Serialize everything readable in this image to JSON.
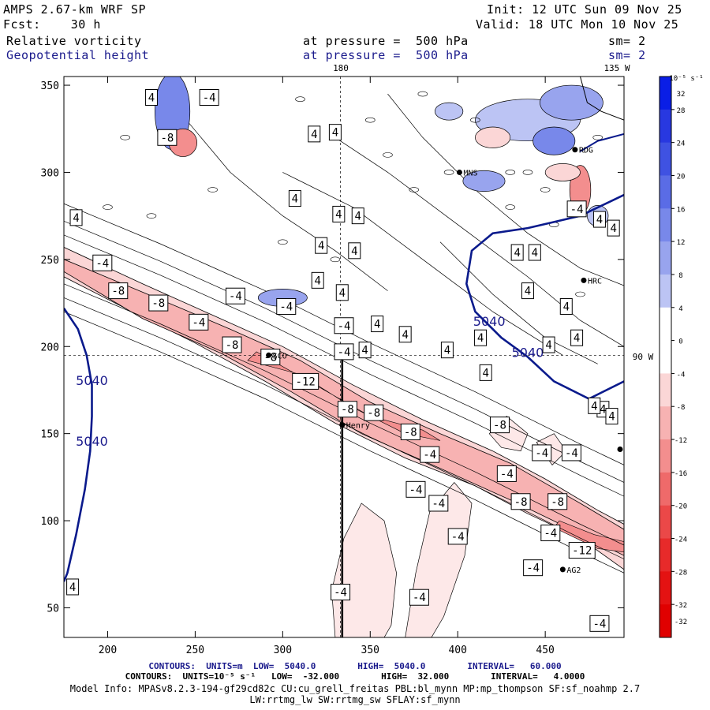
{
  "header": {
    "model": "AMPS 2.67-km WRF SP",
    "fcst": "Fcst:    30 h",
    "init": "Init: 12 UTC Sun 09 Nov 25",
    "valid": "Valid: 18 UTC Mon 10 Nov 25",
    "field1": "Relative vorticity",
    "field1_level": "at pressure =  500 hPa",
    "field1_sm": "sm= 2",
    "field2": "Geopotential height",
    "field2_level": "at pressure =  500 hPa",
    "field2_sm": "sm= 2"
  },
  "map_labels": {
    "lon_180": "180",
    "lon_135": "135 W",
    "lat_90": "90 W",
    "stations": [
      "Henry",
      "AG2",
      "HRC",
      "RDG",
      "MNS",
      "SCO"
    ]
  },
  "footer": {
    "line1": "CONTOURS:  UNITS=m  LOW=  5040.0        HIGH=  5040.0        INTERVAL=   60.000",
    "line2": "CONTOURS:  UNITS=10⁻⁵ s⁻¹   LOW=  -32.000        HIGH=  32.000        INTERVAL=   4.0000",
    "line3": "Model Info: MPASv8.2.3-194-gf29cd82c CU:cu_grell_freitas PBL:bl_mynn MP:mp_thompson SF:sf_noahmp 2.7",
    "line4": "LW:rrtmg_lw SW:rrtmg_sw SFLAY:sf_mynn"
  },
  "colorbar": {
    "unit_label": "10⁻⁵ s⁻¹",
    "ticks": [
      "32",
      "28",
      "24",
      "20",
      "16",
      "12",
      "8",
      "4",
      "0",
      "-4",
      "-8",
      "-12",
      "-16",
      "-20",
      "-24",
      "-28",
      "-32"
    ],
    "colors": [
      "#0a1ee6",
      "#2838e0",
      "#3f52e2",
      "#5a6ce6",
      "#7888ea",
      "#98a4ee",
      "#bcc4f4",
      "#ffffff",
      "#ffffff",
      "#fbd6d6",
      "#f7b2b2",
      "#f38e8e",
      "#ef6a6a",
      "#eb4848",
      "#e72a2a",
      "#e41212",
      "#e00000"
    ]
  },
  "chart_data": {
    "type": "contour",
    "title": "Relative vorticity / Geopotential height at 500 hPa",
    "xlim": [
      175,
      495
    ],
    "ylim": [
      33,
      355
    ],
    "x_ticks": [
      200,
      250,
      300,
      350,
      400,
      450
    ],
    "y_ticks": [
      50,
      100,
      150,
      200,
      250,
      300,
      350
    ],
    "height_contour_value": 5040,
    "height_contour_labels": [
      "5040",
      "5040",
      "5040",
      "5040"
    ],
    "height_labels_pos": [
      [
        191,
        178
      ],
      [
        191,
        143
      ],
      [
        418,
        212
      ],
      [
        440,
        194
      ]
    ],
    "vorticity_labels": [
      {
        "x": 197,
        "y": 248,
        "v": "-4"
      },
      {
        "x": 206,
        "y": 232,
        "v": "-8"
      },
      {
        "x": 229,
        "y": 225,
        "v": "-8"
      },
      {
        "x": 252,
        "y": 214,
        "v": "-4"
      },
      {
        "x": 271,
        "y": 201,
        "v": "-8"
      },
      {
        "x": 293,
        "y": 194,
        "v": "-8"
      },
      {
        "x": 313,
        "y": 180,
        "v": "-12"
      },
      {
        "x": 337,
        "y": 164,
        "v": "-8"
      },
      {
        "x": 352,
        "y": 162,
        "v": "-8"
      },
      {
        "x": 373,
        "y": 151,
        "v": "-8"
      },
      {
        "x": 384,
        "y": 138,
        "v": "-4"
      },
      {
        "x": 376,
        "y": 118,
        "v": "-4"
      },
      {
        "x": 389,
        "y": 110,
        "v": "-4"
      },
      {
        "x": 400,
        "y": 91,
        "v": "-4"
      },
      {
        "x": 378,
        "y": 56,
        "v": "-4"
      },
      {
        "x": 333,
        "y": 59,
        "v": "-4"
      },
      {
        "x": 428,
        "y": 127,
        "v": "-4"
      },
      {
        "x": 436,
        "y": 111,
        "v": "-8"
      },
      {
        "x": 457,
        "y": 111,
        "v": "-8"
      },
      {
        "x": 448,
        "y": 139,
        "v": "-4"
      },
      {
        "x": 465,
        "y": 139,
        "v": "-4"
      },
      {
        "x": 424,
        "y": 155,
        "v": "-8"
      },
      {
        "x": 453,
        "y": 93,
        "v": "-4"
      },
      {
        "x": 471,
        "y": 83,
        "v": "-12"
      },
      {
        "x": 443,
        "y": 73,
        "v": "-4"
      },
      {
        "x": 481,
        "y": 41,
        "v": "-4"
      },
      {
        "x": 273,
        "y": 229,
        "v": "-4"
      },
      {
        "x": 302,
        "y": 223,
        "v": "-4"
      },
      {
        "x": 258,
        "y": 343,
        "v": "-4"
      },
      {
        "x": 234,
        "y": 320,
        "v": "-8"
      },
      {
        "x": 335,
        "y": 212,
        "v": "-4"
      },
      {
        "x": 335,
        "y": 197,
        "v": "-4"
      },
      {
        "x": 468,
        "y": 279,
        "v": "-4"
      },
      {
        "x": 182,
        "y": 274,
        "v": "4"
      },
      {
        "x": 180,
        "y": 62,
        "v": "4"
      },
      {
        "x": 225,
        "y": 343,
        "v": "4"
      },
      {
        "x": 318,
        "y": 322,
        "v": "4"
      },
      {
        "x": 330,
        "y": 323,
        "v": "4"
      },
      {
        "x": 307,
        "y": 285,
        "v": "4"
      },
      {
        "x": 332,
        "y": 276,
        "v": "4"
      },
      {
        "x": 343,
        "y": 275,
        "v": "4"
      },
      {
        "x": 322,
        "y": 258,
        "v": "4"
      },
      {
        "x": 341,
        "y": 255,
        "v": "4"
      },
      {
        "x": 320,
        "y": 238,
        "v": "4"
      },
      {
        "x": 334,
        "y": 231,
        "v": "4"
      },
      {
        "x": 354,
        "y": 213,
        "v": "4"
      },
      {
        "x": 370,
        "y": 207,
        "v": "4"
      },
      {
        "x": 347,
        "y": 198,
        "v": "4"
      },
      {
        "x": 394,
        "y": 198,
        "v": "4"
      },
      {
        "x": 413,
        "y": 205,
        "v": "4"
      },
      {
        "x": 416,
        "y": 185,
        "v": "4"
      },
      {
        "x": 434,
        "y": 254,
        "v": "4"
      },
      {
        "x": 444,
        "y": 254,
        "v": "4"
      },
      {
        "x": 440,
        "y": 232,
        "v": "4"
      },
      {
        "x": 462,
        "y": 223,
        "v": "4"
      },
      {
        "x": 452,
        "y": 201,
        "v": "4"
      },
      {
        "x": 468,
        "y": 205,
        "v": "4"
      },
      {
        "x": 483,
        "y": 164,
        "v": "4"
      },
      {
        "x": 478,
        "y": 166,
        "v": "4"
      },
      {
        "x": 488,
        "y": 160,
        "v": "4"
      },
      {
        "x": 481,
        "y": 273,
        "v": "4"
      },
      {
        "x": 489,
        "y": 268,
        "v": "4"
      }
    ],
    "stations": [
      {
        "name": "Henry",
        "x": 334,
        "y": 155
      },
      {
        "name": "AG2",
        "x": 460,
        "y": 72
      },
      {
        "name": "HRC",
        "x": 472,
        "y": 238
      },
      {
        "name": "RDG",
        "x": 467,
        "y": 313
      },
      {
        "name": "MNS",
        "x": 401,
        "y": 300
      },
      {
        "name": "SCO",
        "x": 292,
        "y": 195
      }
    ],
    "colorbar_ticks": [
      32,
      28,
      24,
      20,
      16,
      12,
      8,
      4,
      0,
      -4,
      -8,
      -12,
      -16,
      -20,
      -24,
      -28,
      -32
    ]
  }
}
